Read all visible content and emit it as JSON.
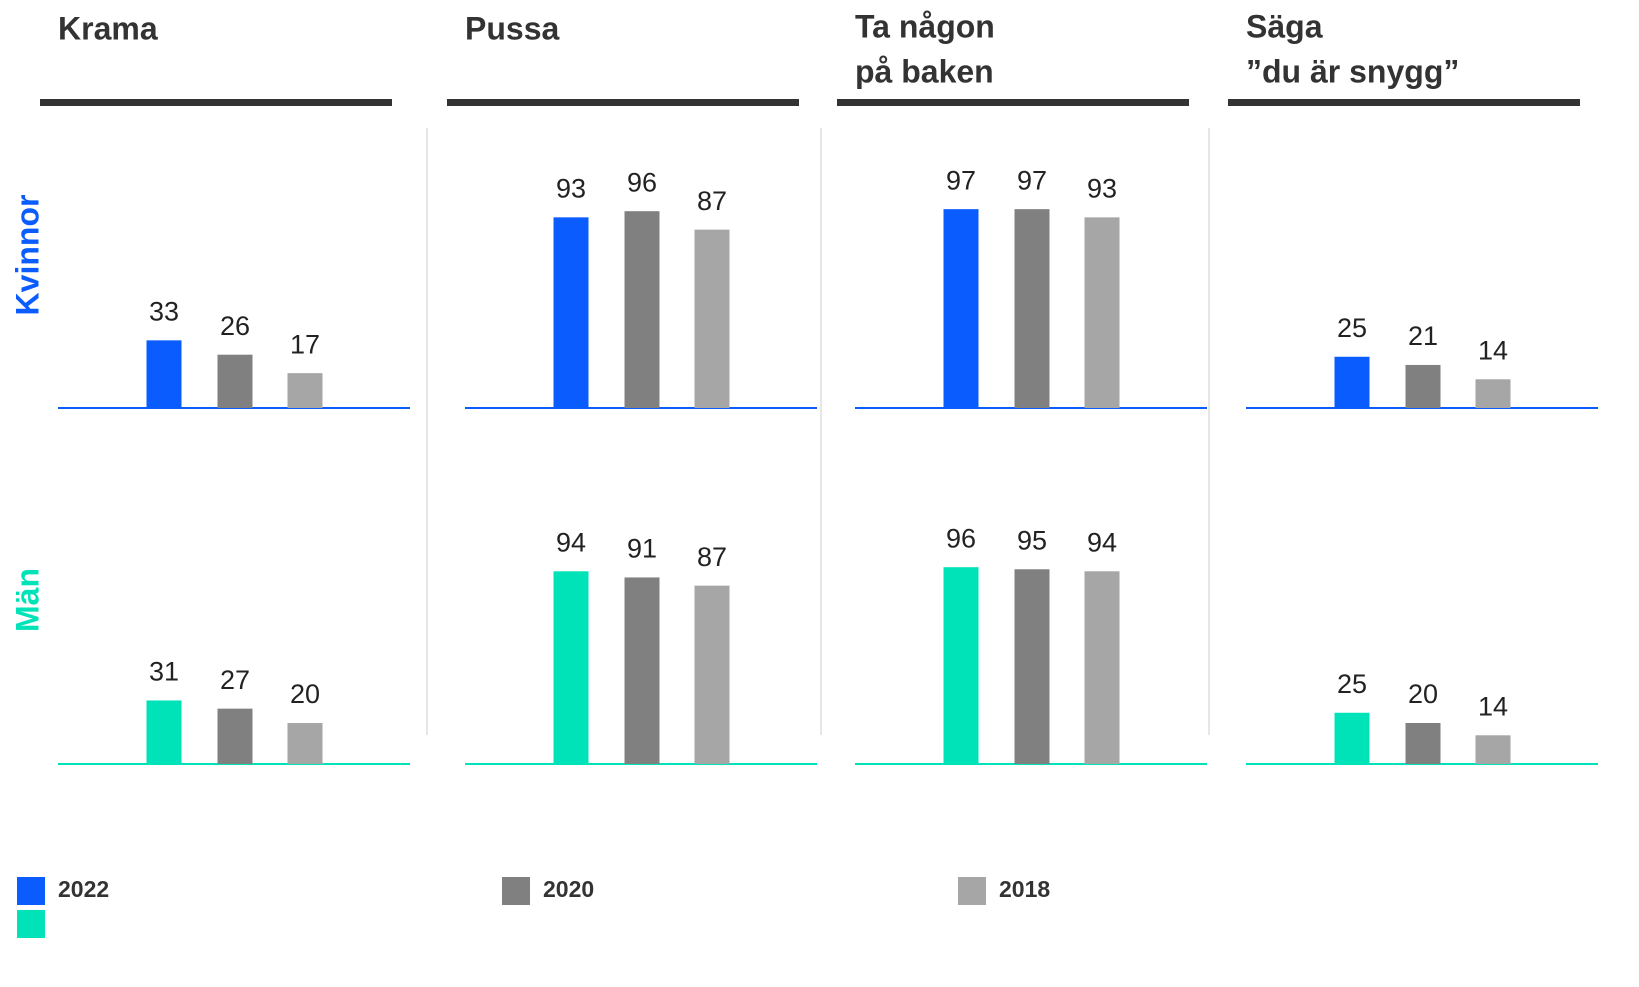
{
  "chart_data": {
    "type": "bar",
    "categories": [
      [
        "Krama"
      ],
      [
        "Pussa"
      ],
      [
        "Ta någon",
        "på baken"
      ],
      [
        "Säga",
        "”du är snygg”"
      ]
    ],
    "groups": [
      {
        "name": "Kvinnor",
        "color": "#0a5cff"
      },
      {
        "name": "Män",
        "color": "#00e3b8"
      }
    ],
    "series": [
      {
        "name": "2022",
        "colors": [
          "#0a5cff",
          "#00e3b8"
        ],
        "values": [
          [
            33,
            93,
            97,
            25
          ],
          [
            31,
            94,
            96,
            25
          ]
        ]
      },
      {
        "name": "2020",
        "color": "#808080",
        "values": [
          [
            26,
            96,
            97,
            21
          ],
          [
            27,
            91,
            95,
            20
          ]
        ]
      },
      {
        "name": "2018",
        "color": "#a6a6a6",
        "values": [
          [
            17,
            87,
            93,
            14
          ],
          [
            20,
            87,
            94,
            14
          ]
        ]
      }
    ],
    "ylim": [
      0,
      100
    ]
  }
}
